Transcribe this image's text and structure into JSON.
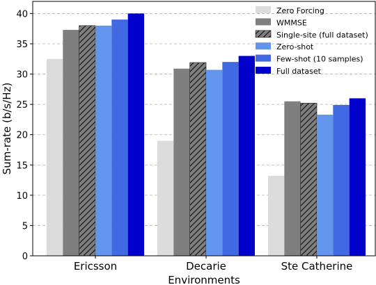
{
  "chart_data": {
    "type": "bar",
    "title": "",
    "xlabel": "Environments",
    "ylabel": "Sum-rate (b/s/Hz)",
    "ylim": [
      0,
      42
    ],
    "yticks": [
      0,
      5,
      10,
      15,
      20,
      25,
      30,
      35,
      40
    ],
    "grid": "horizontal dashed",
    "legend_position": "top-right",
    "categories": [
      "Ericsson",
      "Decarie",
      "Ste Catherine"
    ],
    "series": [
      {
        "name": "Zero Forcing",
        "values": [
          32.5,
          19.0,
          13.2
        ],
        "color": "#dcdcdc",
        "hatch": false
      },
      {
        "name": "WMMSE",
        "values": [
          37.3,
          30.9,
          25.5
        ],
        "color": "#7f7f7f",
        "hatch": false
      },
      {
        "name": "Single-site (full dataset)",
        "values": [
          38.0,
          31.9,
          25.2
        ],
        "color": "#7f7f7f",
        "hatch": true
      },
      {
        "name": "Zero-shot",
        "values": [
          38.0,
          30.7,
          23.3
        ],
        "color": "#6495ed",
        "hatch": false
      },
      {
        "name": "Few-shot (10 samples)",
        "values": [
          39.0,
          32.0,
          24.9
        ],
        "color": "#4169e1",
        "hatch": false
      },
      {
        "name": "Full dataset",
        "values": [
          40.0,
          33.0,
          26.0
        ],
        "color": "#0000cd",
        "hatch": false
      }
    ]
  }
}
